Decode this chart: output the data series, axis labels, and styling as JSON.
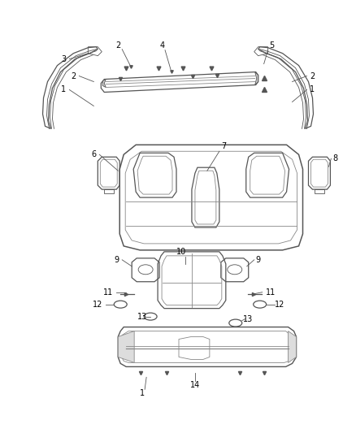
{
  "background_color": "#ffffff",
  "line_color": "#555555",
  "label_color": "#000000",
  "fig_width": 4.38,
  "fig_height": 5.33,
  "dpi": 100
}
